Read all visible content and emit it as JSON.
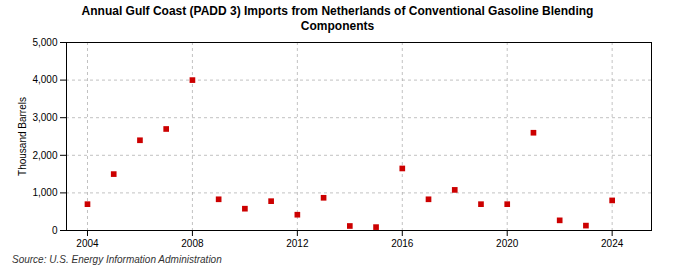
{
  "chart_data": {
    "type": "scatter",
    "title": "Annual Gulf Coast (PADD 3) Imports from Netherlands of Conventional Gasoline Blending\nComponents",
    "y_label": "Thousand Barrels",
    "annotations": [
      "Source: U.S. Energy Information Administration"
    ],
    "x": [
      2004,
      2005,
      2006,
      2007,
      2008,
      2009,
      2010,
      2011,
      2012,
      2013,
      2014,
      2015,
      2016,
      2017,
      2018,
      2019,
      2020,
      2021,
      2022,
      2023,
      2024
    ],
    "values": [
      700,
      1500,
      2400,
      2700,
      4000,
      830,
      580,
      780,
      420,
      870,
      120,
      90,
      1650,
      830,
      1080,
      700,
      700,
      2600,
      270,
      130,
      800
    ],
    "color": "#cc0000",
    "marker": "square",
    "xlim": [
      2003.2,
      2025.5
    ],
    "xticks": [
      2004,
      2008,
      2012,
      2016,
      2020,
      2024
    ],
    "ylim": [
      0,
      5000
    ],
    "yticks": [
      0,
      {
        "value": 1000,
        "label": "1,000"
      },
      {
        "value": 2000,
        "label": "2,000"
      },
      {
        "value": 3000,
        "label": "3,000"
      },
      {
        "value": 4000,
        "label": "4,000"
      },
      {
        "value": 5000,
        "label": "5,000"
      }
    ],
    "grid": true
  }
}
